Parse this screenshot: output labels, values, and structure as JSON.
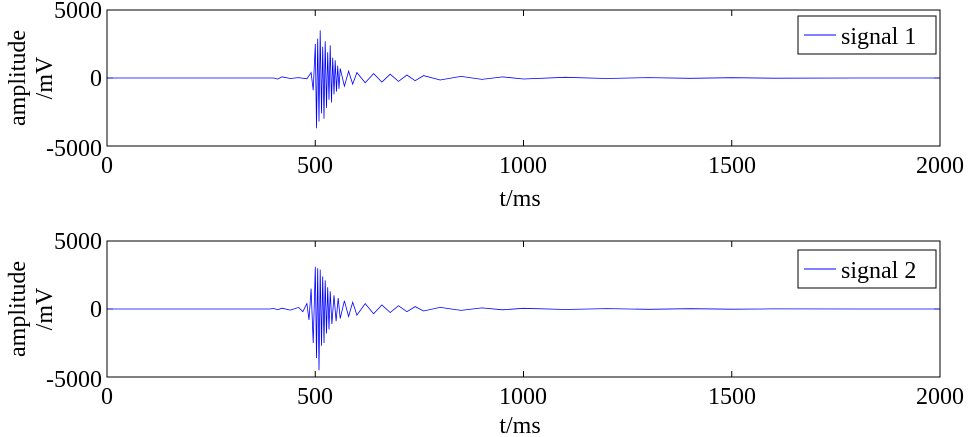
{
  "chart_data": [
    {
      "type": "line",
      "xlabel": "t/ms",
      "ylabel_lines": [
        "amplitude",
        "/mV"
      ],
      "xlim": [
        0,
        2000
      ],
      "ylim": [
        -5000,
        5000
      ],
      "xticks": [
        0,
        500,
        1000,
        1500,
        2000
      ],
      "yticks": [
        -5000,
        0,
        5000
      ],
      "xtick_labels": [
        "0",
        "500",
        "1000",
        "1500",
        "2000"
      ],
      "ytick_labels": [
        "-5000",
        "0",
        "5000"
      ],
      "grid": false,
      "legend_position": "top-right",
      "series": [
        {
          "name": "signal 1",
          "color": "#0000ff",
          "x": [
            0,
            400,
            410,
            420,
            440,
            460,
            480,
            490,
            495,
            500,
            503,
            506,
            509,
            512,
            515,
            518,
            521,
            524,
            527,
            530,
            533,
            536,
            539,
            542,
            545,
            548,
            551,
            554,
            557,
            560,
            570,
            580,
            590,
            600,
            620,
            640,
            660,
            680,
            700,
            720,
            740,
            760,
            800,
            850,
            900,
            950,
            1000,
            1100,
            1200,
            1300,
            1400,
            1500,
            1600,
            1800,
            2000
          ],
          "y": [
            0,
            0,
            -80,
            90,
            -40,
            30,
            -60,
            400,
            -900,
            2500,
            -3700,
            2900,
            -3200,
            3500,
            -2600,
            2300,
            -3000,
            2700,
            -2200,
            1900,
            -1600,
            2400,
            -1800,
            1500,
            -1200,
            1300,
            -1000,
            900,
            -800,
            700,
            -600,
            500,
            -450,
            400,
            -350,
            320,
            -300,
            280,
            -250,
            220,
            -200,
            180,
            -150,
            120,
            -100,
            80,
            -70,
            50,
            -40,
            30,
            -25,
            20,
            -15,
            0,
            0
          ]
        },
        {
          "name": "signal 2",
          "color": "#0000ff",
          "x": [
            0,
            390,
            400,
            410,
            420,
            440,
            460,
            470,
            480,
            485,
            490,
            495,
            500,
            503,
            506,
            509,
            512,
            515,
            518,
            521,
            524,
            527,
            530,
            533,
            536,
            540,
            545,
            550,
            555,
            560,
            570,
            580,
            590,
            600,
            620,
            640,
            660,
            680,
            700,
            720,
            740,
            760,
            800,
            850,
            900,
            950,
            1000,
            1100,
            1200,
            1300,
            1400,
            1500,
            1600,
            1800,
            2000
          ],
          "y": [
            0,
            0,
            40,
            -50,
            60,
            -80,
            120,
            -200,
            400,
            -800,
            1500,
            -2500,
            3100,
            -3600,
            3000,
            -4500,
            2900,
            -2700,
            2400,
            -2500,
            2100,
            -1800,
            1600,
            -1500,
            1300,
            -1100,
            1000,
            -900,
            800,
            -700,
            600,
            -550,
            500,
            -450,
            400,
            -350,
            300,
            -260,
            240,
            -200,
            180,
            -150,
            120,
            -100,
            80,
            -60,
            50,
            -40,
            30,
            -25,
            20,
            -15,
            10,
            0,
            0
          ]
        }
      ]
    }
  ]
}
